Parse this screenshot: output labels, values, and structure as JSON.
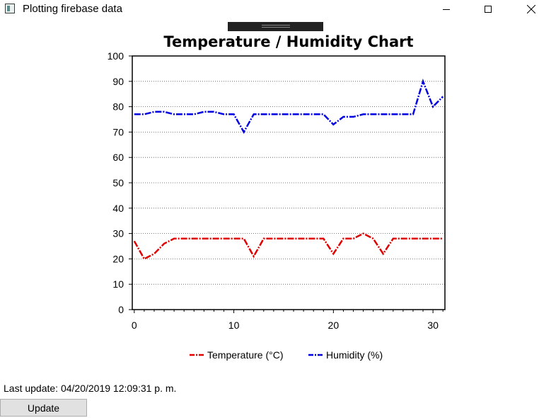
{
  "window": {
    "title": "Plotting firebase data",
    "icon": "app-window-icon"
  },
  "status": {
    "last_update": "Last update: 04/20/2019 12:09:31 p. m."
  },
  "buttons": {
    "update_label": "Update"
  },
  "chart_data": {
    "type": "line",
    "title": "Temperature / Humidity Chart",
    "xlabel": "",
    "ylabel": "",
    "xlim": [
      -0.2,
      31.2
    ],
    "ylim": [
      0,
      100
    ],
    "x_ticks": [
      0,
      10,
      20,
      30
    ],
    "y_ticks": [
      0,
      10,
      20,
      30,
      40,
      50,
      60,
      70,
      80,
      90,
      100
    ],
    "grid": "horizontal dotted",
    "legend_position": "bottom",
    "x": [
      0,
      1,
      2,
      3,
      4,
      5,
      6,
      7,
      8,
      9,
      10,
      11,
      12,
      13,
      14,
      15,
      16,
      17,
      18,
      19,
      20,
      21,
      22,
      23,
      24,
      25,
      26,
      27,
      28,
      29,
      30,
      31
    ],
    "series": [
      {
        "name": "Temperature (°C)",
        "color": "#e00000",
        "values": [
          27,
          20,
          22,
          26,
          28,
          28,
          28,
          28,
          28,
          28,
          28,
          28,
          21,
          28,
          28,
          28,
          28,
          28,
          28,
          28,
          22,
          28,
          28,
          30,
          28,
          22,
          28,
          28,
          28,
          28,
          28,
          28
        ]
      },
      {
        "name": "Humidity (%)",
        "color": "#0000e0",
        "values": [
          77,
          77,
          78,
          78,
          77,
          77,
          77,
          78,
          78,
          77,
          77,
          70,
          77,
          77,
          77,
          77,
          77,
          77,
          77,
          77,
          73,
          76,
          76,
          77,
          77,
          77,
          77,
          77,
          77,
          90,
          80,
          84
        ]
      }
    ]
  }
}
